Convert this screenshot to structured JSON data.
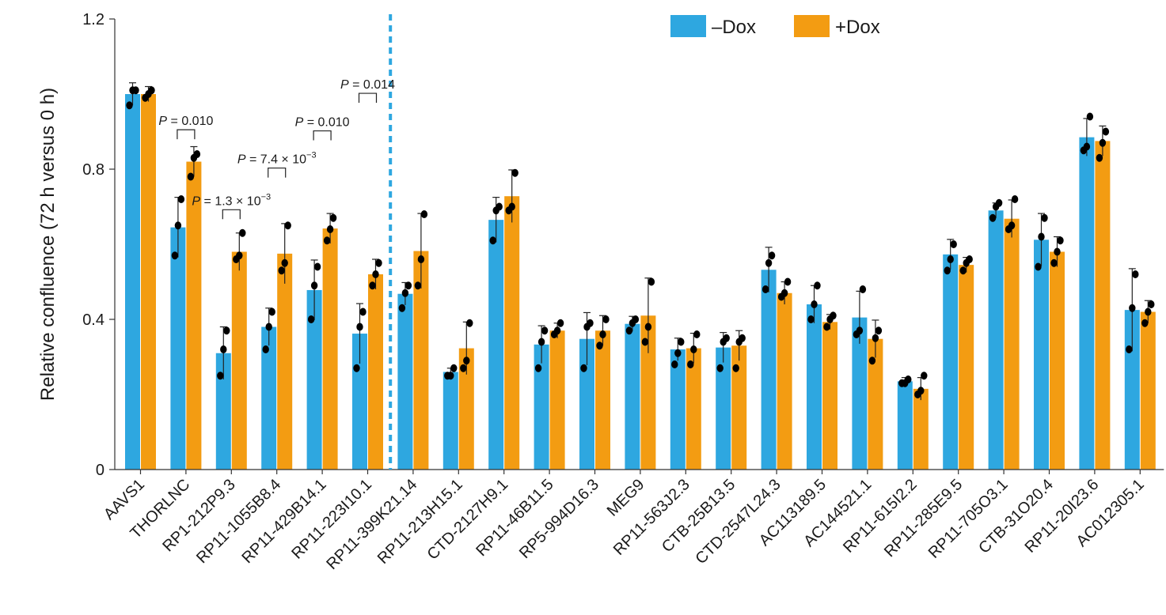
{
  "chart_data": {
    "type": "bar",
    "title": "",
    "xlabel": "",
    "ylabel": "Relative confluence (72 h versus 0 h)",
    "ylim": [
      0,
      1.2
    ],
    "yticks": [
      0,
      0.4,
      0.8,
      1.2
    ],
    "ytick_labels": [
      "0",
      "0.4",
      "0.8",
      "1.2"
    ],
    "grid": false,
    "legend_position": "top-right",
    "divider_after_category": "RP11-223I10.1",
    "colors": {
      "minus_dox": "#2ea7e0",
      "plus_dox": "#f39c12",
      "divider": "#2ea7e0",
      "points": "#000000"
    },
    "categories": [
      "AAVS1",
      "THORLNC",
      "RP1-212P9.3",
      "RP11-1055B8.4",
      "RP11-429B14.1",
      "RP11-223I10.1",
      "RP11-399K21.14",
      "RP11-213H15.1",
      "CTD-2127H9.1",
      "RP11-46B11.5",
      "RP5-994D16.3",
      "MEG9",
      "RP11-563J2.3",
      "CTB-25B13.5",
      "CTD-2547L24.3",
      "AC113189.5",
      "AC144521.1",
      "RP11-615I2.2",
      "RP11-285E9.5",
      "RP11-705O3.1",
      "CTB-31O20.4",
      "RP11-20I23.6",
      "AC012305.1"
    ],
    "series": [
      {
        "name": "–Dox",
        "values": [
          1.0,
          0.645,
          0.31,
          0.38,
          0.478,
          0.362,
          0.468,
          0.26,
          0.665,
          0.333,
          0.348,
          0.388,
          0.32,
          0.325,
          0.532,
          0.44,
          0.405,
          0.235,
          0.573,
          0.69,
          0.612,
          0.885,
          0.425
        ],
        "errors": [
          0.03,
          0.08,
          0.07,
          0.05,
          0.08,
          0.08,
          0.03,
          0.01,
          0.06,
          0.05,
          0.07,
          0.02,
          0.03,
          0.04,
          0.06,
          0.05,
          0.07,
          0.01,
          0.04,
          0.02,
          0.07,
          0.05,
          0.11
        ],
        "points": [
          [
            0.97,
            1.01,
            1.01
          ],
          [
            0.57,
            0.65,
            0.72
          ],
          [
            0.25,
            0.32,
            0.37
          ],
          [
            0.32,
            0.38,
            0.42
          ],
          [
            0.4,
            0.49,
            0.54
          ],
          [
            0.27,
            0.38,
            0.42
          ],
          [
            0.43,
            0.47,
            0.49
          ],
          [
            0.25,
            0.25,
            0.27
          ],
          [
            0.61,
            0.69,
            0.7
          ],
          [
            0.27,
            0.34,
            0.37
          ],
          [
            0.27,
            0.38,
            0.39
          ],
          [
            0.37,
            0.39,
            0.4
          ],
          [
            0.28,
            0.31,
            0.34
          ],
          [
            0.27,
            0.34,
            0.35
          ],
          [
            0.48,
            0.55,
            0.57
          ],
          [
            0.4,
            0.44,
            0.49
          ],
          [
            0.36,
            0.37,
            0.48
          ],
          [
            0.23,
            0.23,
            0.24
          ],
          [
            0.53,
            0.56,
            0.6
          ],
          [
            0.67,
            0.7,
            0.71
          ],
          [
            0.54,
            0.62,
            0.67
          ],
          [
            0.85,
            0.86,
            0.94
          ],
          [
            0.32,
            0.43,
            0.52
          ]
        ]
      },
      {
        "name": "+Dox",
        "values": [
          1.0,
          0.82,
          0.58,
          0.575,
          0.642,
          0.52,
          0.582,
          0.323,
          0.728,
          0.37,
          0.37,
          0.41,
          0.323,
          0.33,
          0.47,
          0.393,
          0.348,
          0.215,
          0.545,
          0.668,
          0.58,
          0.875,
          0.42
        ],
        "errors": [
          0.02,
          0.04,
          0.05,
          0.08,
          0.04,
          0.04,
          0.1,
          0.07,
          0.07,
          0.02,
          0.04,
          0.1,
          0.04,
          0.04,
          0.03,
          0.02,
          0.05,
          0.03,
          0.02,
          0.05,
          0.04,
          0.04,
          0.03
        ],
        "points": [
          [
            0.99,
            1.0,
            1.01
          ],
          [
            0.78,
            0.83,
            0.84
          ],
          [
            0.56,
            0.57,
            0.63
          ],
          [
            0.53,
            0.55,
            0.65
          ],
          [
            0.61,
            0.64,
            0.67
          ],
          [
            0.49,
            0.52,
            0.55
          ],
          [
            0.49,
            0.56,
            0.68
          ],
          [
            0.27,
            0.29,
            0.39
          ],
          [
            0.69,
            0.7,
            0.79
          ],
          [
            0.36,
            0.37,
            0.39
          ],
          [
            0.33,
            0.36,
            0.4
          ],
          [
            0.34,
            0.38,
            0.5
          ],
          [
            0.28,
            0.32,
            0.36
          ],
          [
            0.27,
            0.34,
            0.35
          ],
          [
            0.46,
            0.47,
            0.5
          ],
          [
            0.38,
            0.4,
            0.41
          ],
          [
            0.29,
            0.35,
            0.37
          ],
          [
            0.2,
            0.21,
            0.25
          ],
          [
            0.53,
            0.55,
            0.56
          ],
          [
            0.64,
            0.65,
            0.72
          ],
          [
            0.55,
            0.58,
            0.61
          ],
          [
            0.83,
            0.87,
            0.9
          ],
          [
            0.39,
            0.42,
            0.44
          ]
        ]
      }
    ],
    "annotations": [
      {
        "category_index": 1,
        "y": 0.905,
        "prefix": "P",
        "text": " = 0.010",
        "exponent": ""
      },
      {
        "category_index": 2,
        "y": 0.692,
        "prefix": "P",
        "text": " = 1.3 × 10",
        "exponent": "−3"
      },
      {
        "category_index": 3,
        "y": 0.803,
        "prefix": "P",
        "text": " = 7.4 × 10",
        "exponent": "−3"
      },
      {
        "category_index": 4,
        "y": 0.902,
        "prefix": "P",
        "text": " = 0.010",
        "exponent": ""
      },
      {
        "category_index": 5,
        "y": 1.002,
        "prefix": "P",
        "text": " = 0.014",
        "exponent": ""
      }
    ]
  }
}
